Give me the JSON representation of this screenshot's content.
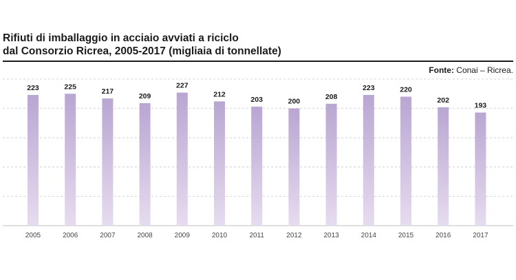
{
  "header": {
    "title_line1": "Rifiuti di imballaggio in acciaio avviati a riciclo",
    "title_line2": "dal Consorzio Ricrea, 2005-2017 (migliaia di tonnellate)",
    "source_label": "Fonte:",
    "source_text": "Conai – Ricrea."
  },
  "chart_data": {
    "type": "bar",
    "title": "Rifiuti di imballaggio in acciaio avviati a riciclo dal Consorzio Ricrea, 2005-2017 (migliaia di tonnellate)",
    "categories": [
      "2005",
      "2006",
      "2007",
      "2008",
      "2009",
      "2010",
      "2011",
      "2012",
      "2013",
      "2014",
      "2015",
      "2016",
      "2017"
    ],
    "values": [
      223,
      225,
      217,
      209,
      227,
      212,
      203,
      200,
      208,
      223,
      220,
      202,
      193
    ],
    "ylim": [
      0,
      250
    ],
    "grid": true,
    "xlabel": "",
    "ylabel": "",
    "colors": {
      "bar_top": "#b9a6d2",
      "bar_bottom": "#e6dcef",
      "grid": "#c8c8c8",
      "axis": "#bdbdbd"
    }
  }
}
